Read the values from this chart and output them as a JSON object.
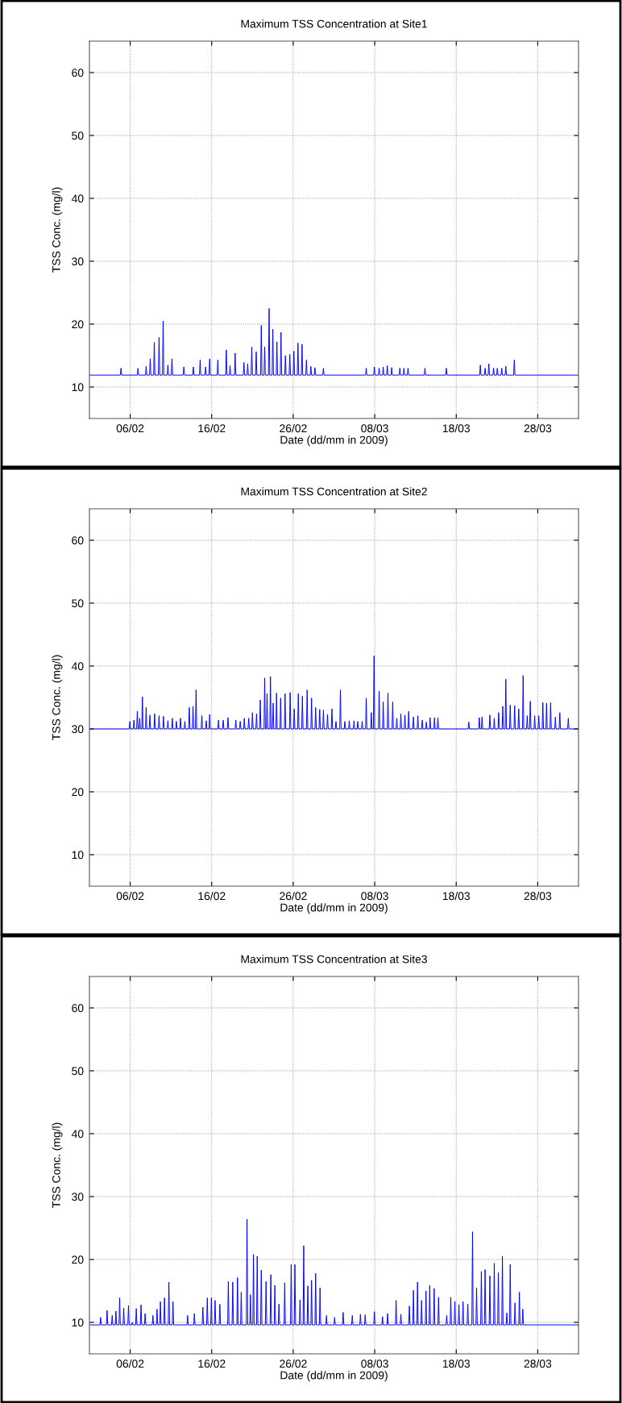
{
  "chart_data": [
    {
      "type": "line",
      "title": "Maximum TSS Concentration at Site1",
      "xlabel": "Date (dd/mm in 2009)",
      "ylabel": "TSS Conc. (mg/l)",
      "xlim": [
        "2009-02-01",
        "2009-04-02"
      ],
      "ylim": [
        5,
        65
      ],
      "xticks": [
        {
          "value": "2009-02-06",
          "label": "06/02"
        },
        {
          "value": "2009-02-16",
          "label": "16/02"
        },
        {
          "value": "2009-02-26",
          "label": "26/02"
        },
        {
          "value": "2009-03-08",
          "label": "08/03"
        },
        {
          "value": "2009-03-18",
          "label": "18/03"
        },
        {
          "value": "2009-03-28",
          "label": "28/03"
        }
      ],
      "yticks": [
        10,
        20,
        30,
        40,
        50,
        60
      ],
      "grid": true,
      "line_style": "solid",
      "x": [
        "2009-02-01",
        "2009-02-04T19:00",
        "2009-02-04T21:00",
        "2009-02-04T23:00",
        "2009-02-06T21:00",
        "2009-02-06T23:00",
        "2009-02-07T01:00",
        "2009-02-07T21:00",
        "2009-02-07T23:00",
        "2009-02-08T01:00",
        "2009-02-08T09:00",
        "2009-02-08T11:00",
        "2009-02-08T13:00",
        "2009-02-08T21:00",
        "2009-02-08T23:00",
        "2009-02-09T01:00",
        "2009-02-09T11:00",
        "2009-02-09T13:00",
        "2009-02-09T15:00",
        "2009-02-09T23:00",
        "2009-02-10T01:00",
        "2009-02-10T03:00",
        "2009-02-10T13:00",
        "2009-02-10T15:00",
        "2009-02-10T17:00",
        "2009-02-11T01:00",
        "2009-02-11T03:00",
        "2009-02-11T05:00",
        "2009-02-12T12:00",
        "2009-02-12T14:00",
        "2009-02-12T16:00",
        "2009-02-13T16:00",
        "2009-02-13T18:00",
        "2009-02-13T20:00",
        "2009-02-14T12:00",
        "2009-02-14T14:00",
        "2009-02-14T16:00",
        "2009-02-15T04:00",
        "2009-02-15T06:00",
        "2009-02-15T08:00",
        "2009-02-15T16:00",
        "2009-02-15T18:00",
        "2009-02-15T20:00",
        "2009-02-16T16:00",
        "2009-02-16T18:00",
        "2009-02-16T20:00",
        "2009-02-17T17:00",
        "2009-02-17T19:00",
        "2009-02-17T21:00",
        "2009-02-18T04:00",
        "2009-02-18T06:00",
        "2009-02-18T08:00",
        "2009-02-18T19:00",
        "2009-02-18T21:00",
        "2009-02-18T23:00",
        "2009-02-19T21:00",
        "2009-02-19T23:00",
        "2009-02-20T01:00",
        "2009-02-20T08:00",
        "2009-02-20T10:00",
        "2009-02-20T12:00",
        "2009-02-20T20:00",
        "2009-02-20T22:00",
        "2009-02-21T00:00",
        "2009-02-21T09:00",
        "2009-02-21T11:00",
        "2009-02-21T13:00",
        "2009-02-22T00:00",
        "2009-02-22T02:00",
        "2009-02-22T04:00",
        "2009-02-22T10:00",
        "2009-02-22T12:00",
        "2009-02-22T14:00",
        "2009-02-22T23:00",
        "2009-02-23T01:00",
        "2009-02-23T03:00",
        "2009-02-23T10:00",
        "2009-02-23T12:00",
        "2009-02-23T14:00",
        "2009-02-23T22:00",
        "2009-02-24T00:00",
        "2009-02-24T02:00",
        "2009-02-24T10:00",
        "2009-02-24T12:00",
        "2009-02-24T14:00",
        "2009-02-24T23:00",
        "2009-02-25T01:00",
        "2009-02-25T03:00",
        "2009-02-25T12:00",
        "2009-02-25T14:00",
        "2009-02-25T16:00",
        "2009-02-26T00:00",
        "2009-02-26T02:00",
        "2009-02-26T04:00",
        "2009-02-26T12:00",
        "2009-02-26T14:00",
        "2009-02-26T16:00",
        "2009-02-27T00:00",
        "2009-02-27T02:00",
        "2009-02-27T04:00",
        "2009-02-27T13:00",
        "2009-02-27T15:00",
        "2009-02-27T17:00",
        "2009-02-28T02:00",
        "2009-02-28T04:00",
        "2009-02-28T06:00",
        "2009-02-28T14:00",
        "2009-02-28T16:00",
        "2009-02-28T18:00",
        "2009-03-01T15:00",
        "2009-03-01T17:00",
        "2009-03-01T19:00",
        "2009-03-06T21:00",
        "2009-03-06T23:00",
        "2009-03-07T01:00",
        "2009-03-07T21:00",
        "2009-03-07T23:00",
        "2009-03-08T01:00",
        "2009-03-08T11:00",
        "2009-03-08T13:00",
        "2009-03-08T15:00",
        "2009-03-08T23:00",
        "2009-03-09T01:00",
        "2009-03-09T03:00",
        "2009-03-09T11:00",
        "2009-03-09T13:00",
        "2009-03-09T15:00",
        "2009-03-10T00:00",
        "2009-03-10T02:00",
        "2009-03-10T04:00",
        "2009-03-11T00:00",
        "2009-03-11T02:00",
        "2009-03-11T04:00",
        "2009-03-11T12:00",
        "2009-03-11T14:00",
        "2009-03-11T16:00",
        "2009-03-12T00:00",
        "2009-03-12T02:00",
        "2009-03-12T04:00",
        "2009-03-14T02:00",
        "2009-03-14T04:00",
        "2009-03-14T06:00",
        "2009-03-16T17:00",
        "2009-03-16T19:00",
        "2009-03-16T21:00",
        "2009-03-20T21:00",
        "2009-03-20T23:00",
        "2009-03-21T01:00",
        "2009-03-21T11:00",
        "2009-03-21T13:00",
        "2009-03-21T15:00",
        "2009-03-21T22:00",
        "2009-03-22T00:00",
        "2009-03-22T02:00",
        "2009-03-22T12:00",
        "2009-03-22T14:00",
        "2009-03-22T16:00",
        "2009-03-22T23:00",
        "2009-03-23T01:00",
        "2009-03-23T03:00",
        "2009-03-23T12:00",
        "2009-03-23T14:00",
        "2009-03-23T16:00",
        "2009-03-24T00:00",
        "2009-03-24T02:00",
        "2009-03-24T04:00",
        "2009-03-25T01:00",
        "2009-03-25T03:00",
        "2009-03-25T05:00",
        "2009-04-02"
      ],
      "series": [
        {
          "color": "#0000ff",
          "values": [
            11.9,
            11.9,
            13.0,
            11.9,
            11.9,
            13.0,
            11.9,
            11.9,
            13.3,
            11.9,
            11.9,
            14.5,
            11.9,
            11.9,
            17.1,
            11.9,
            11.9,
            17.9,
            11.9,
            11.9,
            20.5,
            11.9,
            11.9,
            13.5,
            11.9,
            11.9,
            14.5,
            11.9,
            11.9,
            13.2,
            11.9,
            11.9,
            13.2,
            11.9,
            11.9,
            14.3,
            11.9,
            11.9,
            13.2,
            11.9,
            11.9,
            14.5,
            11.9,
            11.9,
            14.3,
            11.9,
            11.9,
            15.9,
            11.9,
            11.9,
            13.4,
            11.9,
            11.9,
            15.4,
            11.9,
            11.9,
            13.9,
            11.9,
            11.9,
            13.7,
            11.9,
            11.9,
            16.4,
            11.9,
            11.9,
            15.6,
            11.9,
            11.9,
            19.8,
            11.9,
            11.9,
            16.4,
            11.9,
            11.9,
            22.5,
            11.9,
            11.9,
            19.2,
            11.9,
            11.9,
            17.2,
            11.9,
            11.9,
            18.7,
            11.9,
            11.9,
            15.0,
            11.9,
            11.9,
            15.2,
            11.9,
            11.9,
            15.7,
            11.9,
            11.9,
            17.0,
            11.9,
            11.9,
            16.8,
            11.9,
            11.9,
            14.3,
            11.9,
            11.9,
            13.3,
            11.9,
            11.9,
            13.1,
            11.9,
            11.9,
            13.0,
            11.9,
            11.9,
            13.0,
            11.9,
            11.9,
            13.2,
            11.9,
            11.9,
            13.0,
            11.9,
            11.9,
            13.2,
            11.9,
            11.9,
            13.4,
            11.9,
            11.9,
            13.1,
            11.9,
            11.9,
            13.0,
            11.9,
            11.9,
            13.0,
            11.9,
            11.9,
            13.0,
            11.9,
            11.9,
            13.0,
            11.9,
            11.9,
            13.0,
            11.9,
            11.9,
            13.5,
            11.9,
            11.9,
            13.0,
            11.9,
            11.9,
            13.7,
            11.9,
            11.9,
            13.0,
            11.9,
            11.9,
            13.0,
            11.9,
            11.9,
            13.0,
            11.9,
            11.9,
            13.3,
            11.9,
            11.9,
            14.3,
            11.9,
            11.9
          ]
        }
      ]
    },
    {
      "type": "line",
      "title": "Maximum TSS Concentration at Site2",
      "xlabel": "Date (dd/mm in 2009)",
      "ylabel": "TSS Conc. (mg/l)",
      "xlim": [
        "2009-02-01",
        "2009-04-02"
      ],
      "ylim": [
        5,
        65
      ],
      "xticks": [
        {
          "value": "2009-02-06",
          "label": "06/02"
        },
        {
          "value": "2009-02-16",
          "label": "16/02"
        },
        {
          "value": "2009-02-26",
          "label": "26/02"
        },
        {
          "value": "2009-03-08",
          "label": "08/03"
        },
        {
          "value": "2009-03-18",
          "label": "18/03"
        },
        {
          "value": "2009-03-28",
          "label": "28/03"
        }
      ],
      "yticks": [
        10,
        20,
        30,
        40,
        50,
        60
      ],
      "grid": true,
      "line_style": "solid",
      "x": [
        "2009-02-01",
        "2009-02-05T21:00",
        "2009-02-05T23:00",
        "2009-02-06T01:00",
        "2009-02-06T09:00",
        "2009-02-06T11:00",
        "2009-02-06T13:00",
        "2009-02-06T19:00",
        "2009-02-06T21:00",
        "2009-02-06T23:00",
        "2009-02-07T02:00",
        "2009-02-07T04:00",
        "2009-02-07T06:00",
        "2009-02-07T10:00",
        "2009-02-07T12:00",
        "2009-02-07T14:00",
        "2009-02-07T21:00",
        "2009-02-07T23:00",
        "2009-02-08T01:00",
        "2009-02-08T08:00",
        "2009-02-08T10:00",
        "2009-02-08T12:00",
        "2009-02-08T22:00",
        "2009-02-09T00:00",
        "2009-02-09T02:00",
        "2009-02-09T11:00",
        "2009-02-09T13:00",
        "2009-02-09T15:00",
        "2009-02-10T00:00",
        "2009-02-10T02:00",
        "2009-02-10T04:00",
        "2009-02-10T13:00",
        "2009-02-10T15:00",
        "2009-02-10T17:00",
        "2009-02-11T02:00",
        "2009-02-11T04:00",
        "2009-02-11T06:00",
        "2009-02-11T14:00",
        "2009-02-11T16:00",
        "2009-02-11T18:00",
        "2009-02-12T02:00",
        "2009-02-12T04:00",
        "2009-02-12T06:00",
        "2009-02-12T15:00",
        "2009-02-12T17:00",
        "2009-02-12T19:00",
        "2009-02-13T04:00",
        "2009-02-13T06:00",
        "2009-02-13T08:00",
        "2009-02-13T15:00",
        "2009-02-13T17:00",
        "2009-02-13T19:00",
        "2009-02-14T00:00",
        "2009-02-14T02:00",
        "2009-02-14T04:00",
        "2009-02-14T17:00",
        "2009-02-14T19:00",
        "2009-02-14T21:00",
        "2009-02-15T06:00",
        "2009-02-15T08:00",
        "2009-02-15T10:00",
        "2009-02-15T16:00",
        "2009-02-15T18:00",
        "2009-02-15T20:00",
        "2009-02-16T18:00",
        "2009-02-16T20:00",
        "2009-02-16T22:00",
        "2009-02-17T08:00",
        "2009-02-17T10:00",
        "2009-02-17T12:00",
        "2009-02-17T22:00",
        "2009-02-18T00:00",
        "2009-02-18T02:00",
        "2009-02-18T21:00",
        "2009-02-18T23:00",
        "2009-02-19T01:00",
        "2009-02-19T10:00",
        "2009-02-19T12:00",
        "2009-02-19T14:00",
        "2009-02-19T22:00",
        "2009-02-20T00:00",
        "2009-02-20T02:00",
        "2009-02-20T11:00",
        "2009-02-20T13:00",
        "2009-02-20T15:00",
        "2009-02-20T22:00",
        "2009-02-21T00:00",
        "2009-02-21T02:00",
        "2009-02-21T10:00",
        "2009-02-21T12:00",
        "2009-02-21T14:00",
        "2009-02-21T21:00",
        "2009-02-21T23:00",
        "2009-02-22T01:00",
        "2009-02-22T10:00",
        "2009-02-22T12:00",
        "2009-02-22T14:00",
        "2009-02-22T17:00",
        "2009-02-22T19:00",
        "2009-02-22T21:00",
        "2009-02-23T03:00",
        "2009-02-23T05:00",
        "2009-02-23T07:00",
        "2009-02-23T11:00",
        "2009-02-23T13:00",
        "2009-02-23T15:00",
        "2009-02-23T21:00",
        "2009-02-23T23:00",
        "2009-02-24T01:00",
        "2009-02-24T09:00",
        "2009-02-24T11:00",
        "2009-02-24T13:00",
        "2009-02-24T22:00",
        "2009-02-25T00:00",
        "2009-02-25T02:00",
        "2009-02-25T13:00",
        "2009-02-25T15:00",
        "2009-02-25T17:00",
        "2009-02-26T01:00",
        "2009-02-26T03:00",
        "2009-02-26T05:00",
        "2009-02-26T13:00",
        "2009-02-26T15:00",
        "2009-02-26T17:00",
        "2009-02-27T01:00",
        "2009-02-27T03:00",
        "2009-02-27T05:00",
        "2009-02-27T15:00",
        "2009-02-27T17:00",
        "2009-02-27T19:00",
        "2009-02-28T04:00",
        "2009-02-28T06:00",
        "2009-02-28T08:00",
        "2009-02-28T16:00",
        "2009-02-28T18:00",
        "2009-02-28T20:00",
        "2009-03-01T04:00",
        "2009-03-01T06:00",
        "2009-03-01T08:00",
        "2009-03-01T15:00",
        "2009-03-01T17:00",
        "2009-03-01T19:00",
        "2009-03-02T03:00",
        "2009-03-02T05:00",
        "2009-03-02T07:00",
        "2009-03-02T16:00",
        "2009-03-02T18:00",
        "2009-03-02T20:00",
        "2009-03-03T04:00",
        "2009-03-03T06:00",
        "2009-03-03T08:00",
        "2009-03-03T17:00",
        "2009-03-03T19:00",
        "2009-03-03T21:00",
        "2009-03-04T06:00",
        "2009-03-04T08:00",
        "2009-03-04T10:00",
        "2009-03-04T19:00",
        "2009-03-04T21:00",
        "2009-03-04T23:00",
        "2009-03-05T09:00",
        "2009-03-05T11:00",
        "2009-03-05T13:00",
        "2009-03-05T20:00",
        "2009-03-05T22:00",
        "2009-03-06T00:00",
        "2009-03-06T09:00",
        "2009-03-06T11:00",
        "2009-03-06T13:00",
        "2009-03-06T21:00",
        "2009-03-06T23:00",
        "2009-03-07T01:00",
        "2009-03-07T12:00",
        "2009-03-07T14:00",
        "2009-03-07T16:00",
        "2009-03-07T20:00",
        "2009-03-07T22:00",
        "2009-03-08T00:00",
        "2009-03-08T11:00",
        "2009-03-08T13:00",
        "2009-03-08T15:00",
        "2009-03-08T23:00",
        "2009-03-09T01:00",
        "2009-03-09T03:00",
        "2009-03-09T13:00",
        "2009-03-09T15:00",
        "2009-03-09T17:00",
        "2009-03-10T03:00",
        "2009-03-10T05:00",
        "2009-03-10T07:00",
        "2009-03-10T15:00",
        "2009-03-10T17:00",
        "2009-03-10T19:00",
        "2009-03-11T03:00",
        "2009-03-11T05:00",
        "2009-03-11T07:00",
        "2009-03-11T15:00",
        "2009-03-11T17:00",
        "2009-03-11T19:00",
        "2009-03-12T02:00",
        "2009-03-12T04:00",
        "2009-03-12T06:00",
        "2009-03-12T16:00",
        "2009-03-12T18:00",
        "2009-03-12T20:00",
        "2009-03-13T05:00",
        "2009-03-13T07:00",
        "2009-03-13T09:00",
        "2009-03-13T18:00",
        "2009-03-13T20:00",
        "2009-03-13T22:00",
        "2009-03-14T06:00",
        "2009-03-14T08:00",
        "2009-03-14T10:00",
        "2009-03-14T17:00",
        "2009-03-14T19:00",
        "2009-03-14T21:00",
        "2009-03-15T06:00",
        "2009-03-15T08:00",
        "2009-03-15T10:00",
        "2009-03-15T16:00",
        "2009-03-15T18:00",
        "2009-03-15T20:00",
        "2009-03-19T11:00",
        "2009-03-19T13:00",
        "2009-03-19T15:00",
        "2009-03-20T18:00",
        "2009-03-20T20:00",
        "2009-03-20T22:00",
        "2009-03-21T02:00",
        "2009-03-21T04:00",
        "2009-03-21T06:00",
        "2009-03-22T01:00",
        "2009-03-22T03:00",
        "2009-03-22T05:00",
        "2009-03-22T14:00",
        "2009-03-22T16:00",
        "2009-03-22T18:00",
        "2009-03-23T03:00",
        "2009-03-23T05:00",
        "2009-03-23T07:00",
        "2009-03-23T15:00",
        "2009-03-23T17:00",
        "2009-03-23T19:00",
        "2009-03-24T00:00",
        "2009-03-24T02:00",
        "2009-03-24T04:00",
        "2009-03-24T13:00",
        "2009-03-24T15:00",
        "2009-03-24T17:00",
        "2009-03-25T02:00",
        "2009-03-25T04:00",
        "2009-03-25T06:00",
        "2009-03-25T14:00",
        "2009-03-25T16:00",
        "2009-03-25T18:00",
        "2009-03-26T03:00",
        "2009-03-26T05:00",
        "2009-03-26T07:00",
        "2009-03-26T15:00",
        "2009-03-26T17:00",
        "2009-03-26T19:00",
        "2009-03-27T00:00",
        "2009-03-27T02:00",
        "2009-03-27T04:00",
        "2009-03-27T13:00",
        "2009-03-27T15:00",
        "2009-03-27T17:00",
        "2009-03-28T01:00",
        "2009-03-28T03:00",
        "2009-03-28T05:00",
        "2009-03-28T13:00",
        "2009-03-28T15:00",
        "2009-03-28T17:00",
        "2009-03-29T00:00",
        "2009-03-29T02:00",
        "2009-03-29T04:00",
        "2009-03-29T12:00",
        "2009-03-29T14:00",
        "2009-03-29T16:00",
        "2009-03-30T02:00",
        "2009-03-30T04:00",
        "2009-03-30T06:00",
        "2009-03-30T15:00",
        "2009-03-30T17:00",
        "2009-03-30T19:00",
        "2009-03-31T16:00",
        "2009-03-31T18:00",
        "2009-03-31T20:00",
        "2009-04-02"
      ],
      "series": [
        {
          "color": "#0000ff",
          "values": [
            30,
            30,
            31.2,
            30,
            30,
            31.4,
            30,
            30,
            32.8,
            30,
            30,
            31.7,
            30,
            30,
            35.1,
            30,
            30,
            33.4,
            30,
            30,
            32.2,
            30,
            30,
            32.4,
            30,
            30,
            32.1,
            30,
            30,
            32.0,
            30,
            30,
            31.3,
            30,
            30,
            31.7,
            30,
            30,
            31.2,
            30,
            30,
            31.7,
            30,
            30,
            31.2,
            30,
            30,
            33.4,
            30,
            30,
            33.6,
            30,
            30,
            36.2,
            30,
            30,
            32.1,
            30,
            30,
            31.3,
            30,
            30,
            32.3,
            30,
            30,
            31.4,
            30,
            30,
            31.4,
            30,
            30,
            31.8,
            30,
            30,
            31.4,
            30,
            30,
            31.2,
            30,
            30,
            31.7,
            30,
            30,
            31.7,
            30,
            30,
            32.6,
            30,
            30,
            32.4,
            30,
            30,
            34.6,
            30,
            30,
            38.1,
            30,
            30,
            35.6,
            30,
            30,
            38.3,
            30,
            30,
            34.1,
            30,
            30,
            35.7,
            30,
            30,
            34.9,
            30,
            30,
            35.6,
            30,
            30,
            35.8,
            30,
            30,
            33.2,
            30,
            30,
            35.6,
            30,
            30,
            35.2,
            30,
            30,
            36.2,
            30,
            30,
            34.9,
            30,
            30,
            33.4,
            30,
            30,
            33.1,
            30,
            30,
            33.0,
            30,
            30,
            32.3,
            30,
            30,
            33.2,
            30,
            30,
            31.2,
            30,
            30,
            36.2,
            30,
            30,
            31.2,
            30,
            30,
            31.3,
            30,
            30,
            31.3,
            30,
            30,
            31.2,
            30,
            30,
            31.2,
            30,
            30,
            34.9,
            30,
            30,
            32.6,
            30,
            30,
            41.6,
            30,
            30,
            36.0,
            30,
            30,
            34.3,
            30,
            30,
            35.7,
            30,
            30,
            34.3,
            30,
            30,
            31.7,
            30,
            30,
            32.4,
            30,
            30,
            32.2,
            30,
            30,
            32.8,
            30,
            30,
            31.9,
            30,
            30,
            32.1,
            30,
            30,
            31.4,
            30,
            30,
            31.1,
            30,
            30,
            31.8,
            30,
            30,
            31.8,
            30,
            30,
            31.8,
            30,
            30,
            31.1,
            30,
            30,
            31.8,
            30,
            30,
            31.9,
            30,
            30,
            32.2,
            30,
            30,
            31.7,
            30,
            30,
            32.6,
            30,
            30,
            33.6,
            30,
            30,
            37.9,
            30,
            30,
            33.8,
            30,
            30,
            33.7,
            30,
            30,
            33.2,
            30,
            30,
            38.5,
            30,
            30,
            32.1,
            30,
            30,
            34.4,
            30,
            30,
            32.1,
            30,
            30,
            32.1,
            30,
            30,
            34.2,
            30,
            30,
            34.1,
            30,
            30,
            34.2,
            30,
            30,
            31.9,
            30,
            30,
            32.6,
            30,
            30,
            31.7,
            30,
            30
          ]
        }
      ]
    },
    {
      "type": "line",
      "title": "Maximum TSS Concentration at Site3",
      "xlabel": "Date (dd/mm in 2009)",
      "ylabel": "TSS Conc. (mg/l)",
      "xlim": [
        "2009-02-01",
        "2009-04-02"
      ],
      "ylim": [
        5,
        65
      ],
      "xticks": [
        {
          "value": "2009-02-06",
          "label": "06/02"
        },
        {
          "value": "2009-02-16",
          "label": "16/02"
        },
        {
          "value": "2009-02-26",
          "label": "26/02"
        },
        {
          "value": "2009-03-08",
          "label": "08/03"
        },
        {
          "value": "2009-03-18",
          "label": "18/03"
        },
        {
          "value": "2009-03-28",
          "label": "28/03"
        }
      ],
      "yticks": [
        10,
        20,
        30,
        40,
        50,
        60
      ],
      "grid": true,
      "line_style": "solid",
      "x": [
        "2009-02-01",
        "2009-02-02T07:00",
        "2009-02-02T09:00",
        "2009-02-02T11:00",
        "2009-02-03T02:00",
        "2009-02-03T04:00",
        "2009-02-03T06:00",
        "2009-02-03T17:00",
        "2009-02-03T19:00",
        "2009-02-03T21:00",
        "2009-02-04T04:00",
        "2009-02-04T06:00",
        "2009-02-04T08:00",
        "2009-02-04T15:00",
        "2009-02-04T17:00",
        "2009-02-04T19:00",
        "2009-02-05T03:00",
        "2009-02-05T05:00",
        "2009-02-05T07:00",
        "2009-02-05T17:00",
        "2009-02-05T19:00",
        "2009-02-05T21:00",
        "2009-02-06T04:00",
        "2009-02-06T06:00",
        "2009-02-06T08:00",
        "2009-02-06T16:00",
        "2009-02-06T18:00",
        "2009-02-06T20:00",
        "2009-02-07T06:00",
        "2009-02-07T08:00",
        "2009-02-07T10:00",
        "2009-02-07T18:00",
        "2009-02-07T20:00",
        "2009-02-07T22:00",
        "2009-02-08T17:00",
        "2009-02-08T19:00",
        "2009-02-08T21:00",
        "2009-02-09T05:00",
        "2009-02-09T07:00",
        "2009-02-09T09:00",
        "2009-02-09T15:00",
        "2009-02-09T17:00",
        "2009-02-09T19:00",
        "2009-02-10T03:00",
        "2009-02-10T05:00",
        "2009-02-10T07:00",
        "2009-02-10T16:00",
        "2009-02-10T18:00",
        "2009-02-10T20:00",
        "2009-02-11T04:00",
        "2009-02-11T06:00",
        "2009-02-11T08:00",
        "2009-02-12T23:00",
        "2009-02-13T01:00",
        "2009-02-13T03:00",
        "2009-02-13T19:00",
        "2009-02-13T21:00",
        "2009-02-13T23:00",
        "2009-02-14T20:00",
        "2009-02-14T22:00",
        "2009-02-15T00:00",
        "2009-02-15T09:00",
        "2009-02-15T11:00",
        "2009-02-15T13:00",
        "2009-02-15T21:00",
        "2009-02-15T23:00",
        "2009-02-16T01:00",
        "2009-02-16T08:00",
        "2009-02-16T10:00",
        "2009-02-16T12:00",
        "2009-02-16T22:00",
        "2009-02-17T00:00",
        "2009-02-17T02:00",
        "2009-02-17T23:00",
        "2009-02-18T01:00",
        "2009-02-18T03:00",
        "2009-02-18T12:00",
        "2009-02-18T14:00",
        "2009-02-18T16:00",
        "2009-02-19T02:00",
        "2009-02-19T04:00",
        "2009-02-19T06:00",
        "2009-02-19T13:00",
        "2009-02-19T15:00",
        "2009-02-19T17:00",
        "2009-02-20T06:00",
        "2009-02-20T08:00",
        "2009-02-20T10:00",
        "2009-02-20T16:00",
        "2009-02-20T18:00",
        "2009-02-20T20:00",
        "2009-02-21T01:00",
        "2009-02-21T03:00",
        "2009-02-21T05:00",
        "2009-02-21T12:00",
        "2009-02-21T14:00",
        "2009-02-21T16:00",
        "2009-02-22T00:00",
        "2009-02-22T02:00",
        "2009-02-22T04:00",
        "2009-02-22T14:00",
        "2009-02-22T16:00",
        "2009-02-22T18:00",
        "2009-02-23T04:00",
        "2009-02-23T06:00",
        "2009-02-23T08:00",
        "2009-02-23T16:00",
        "2009-02-23T18:00",
        "2009-02-23T20:00",
        "2009-02-24T04:00",
        "2009-02-24T06:00",
        "2009-02-24T08:00",
        "2009-02-24T21:00",
        "2009-02-24T23:00",
        "2009-02-25T01:00",
        "2009-02-25T16:00",
        "2009-02-25T18:00",
        "2009-02-25T20:00",
        "2009-02-26T03:00",
        "2009-02-26T05:00",
        "2009-02-26T07:00",
        "2009-02-26T18:00",
        "2009-02-26T20:00",
        "2009-02-26T22:00",
        "2009-02-27T05:00",
        "2009-02-27T07:00",
        "2009-02-27T09:00",
        "2009-02-27T17:00",
        "2009-02-27T19:00",
        "2009-02-27T21:00",
        "2009-02-28T04:00",
        "2009-02-28T06:00",
        "2009-02-28T08:00",
        "2009-02-28T16:00",
        "2009-02-28T18:00",
        "2009-02-28T20:00",
        "2009-03-01T05:00",
        "2009-03-01T07:00",
        "2009-03-01T09:00",
        "2009-03-02T00:00",
        "2009-03-02T02:00",
        "2009-03-02T04:00",
        "2009-03-03T00:00",
        "2009-03-03T02:00",
        "2009-03-03T04:00",
        "2009-03-04T01:00",
        "2009-03-04T03:00",
        "2009-03-04T05:00",
        "2009-03-05T04:00",
        "2009-03-05T06:00",
        "2009-03-05T08:00",
        "2009-03-06T04:00",
        "2009-03-06T06:00",
        "2009-03-06T08:00",
        "2009-03-06T18:00",
        "2009-03-06T20:00",
        "2009-03-06T22:00",
        "2009-03-07T21:00",
        "2009-03-07T23:00",
        "2009-03-08T01:00",
        "2009-03-08T21:00",
        "2009-03-08T23:00",
        "2009-03-09T01:00",
        "2009-03-09T12:00",
        "2009-03-09T14:00",
        "2009-03-09T16:00",
        "2009-03-10T13:00",
        "2009-03-10T15:00",
        "2009-03-10T17:00",
        "2009-03-11T03:00",
        "2009-03-11T05:00",
        "2009-03-11T07:00",
        "2009-03-12T04:00",
        "2009-03-12T06:00",
        "2009-03-12T08:00",
        "2009-03-12T16:00",
        "2009-03-12T18:00",
        "2009-03-12T20:00",
        "2009-03-13T04:00",
        "2009-03-13T06:00",
        "2009-03-13T08:00",
        "2009-03-13T16:00",
        "2009-03-13T18:00",
        "2009-03-13T20:00",
        "2009-03-14T05:00",
        "2009-03-14T07:00",
        "2009-03-14T09:00",
        "2009-03-14T16:00",
        "2009-03-14T18:00",
        "2009-03-14T20:00",
        "2009-03-15T05:00",
        "2009-03-15T07:00",
        "2009-03-15T09:00",
        "2009-03-15T18:00",
        "2009-03-15T20:00",
        "2009-03-15T22:00",
        "2009-03-16T18:00",
        "2009-03-16T20:00",
        "2009-03-16T22:00",
        "2009-03-17T06:00",
        "2009-03-17T08:00",
        "2009-03-17T10:00",
        "2009-03-17T18:00",
        "2009-03-17T20:00",
        "2009-03-17T22:00",
        "2009-03-18T06:00",
        "2009-03-18T08:00",
        "2009-03-18T10:00",
        "2009-03-18T18:00",
        "2009-03-18T20:00",
        "2009-03-18T22:00",
        "2009-03-19T08:00",
        "2009-03-19T10:00",
        "2009-03-19T12:00",
        "2009-03-19T22:00",
        "2009-03-20T00:00",
        "2009-03-20T02:00",
        "2009-03-20T10:00",
        "2009-03-20T12:00",
        "2009-03-20T14:00",
        "2009-03-21T00:00",
        "2009-03-21T02:00",
        "2009-03-21T04:00",
        "2009-03-21T11:00",
        "2009-03-21T13:00",
        "2009-03-21T15:00",
        "2009-03-22T01:00",
        "2009-03-22T03:00",
        "2009-03-22T05:00",
        "2009-03-22T14:00",
        "2009-03-22T16:00",
        "2009-03-22T18:00",
        "2009-03-23T02:00",
        "2009-03-23T04:00",
        "2009-03-23T06:00",
        "2009-03-23T14:00",
        "2009-03-23T16:00",
        "2009-03-23T18:00",
        "2009-03-24T03:00",
        "2009-03-24T05:00",
        "2009-03-24T07:00",
        "2009-03-24T13:00",
        "2009-03-24T15:00",
        "2009-03-24T17:00",
        "2009-03-25T03:00",
        "2009-03-25T05:00",
        "2009-03-25T07:00",
        "2009-03-25T16:00",
        "2009-03-25T18:00",
        "2009-03-25T20:00",
        "2009-03-26T02:00",
        "2009-03-26T04:00",
        "2009-03-26T06:00",
        "2009-04-02"
      ],
      "series": [
        {
          "color": "#0000ff",
          "values": [
            9.6,
            9.6,
            10.8,
            9.6,
            9.6,
            11.9,
            9.6,
            9.6,
            11.1,
            9.6,
            9.6,
            11.8,
            9.6,
            9.6,
            13.9,
            9.6,
            9.6,
            12.3,
            9.6,
            9.6,
            12.7,
            9.6,
            9.6,
            10.0,
            9.6,
            9.6,
            12.2,
            9.6,
            9.6,
            12.8,
            9.6,
            9.6,
            11.4,
            9.6,
            9.6,
            11.1,
            9.6,
            9.6,
            12.1,
            9.6,
            9.6,
            13.3,
            9.6,
            9.6,
            13.9,
            9.6,
            9.6,
            16.4,
            9.6,
            9.6,
            13.3,
            9.6,
            9.6,
            11.1,
            9.6,
            9.6,
            11.4,
            9.6,
            9.6,
            12.4,
            9.6,
            9.6,
            13.9,
            9.6,
            9.6,
            13.9,
            9.6,
            9.6,
            13.5,
            9.6,
            9.6,
            12.9,
            9.6,
            9.6,
            16.5,
            9.6,
            9.6,
            16.4,
            9.6,
            9.6,
            17.1,
            9.6,
            9.6,
            14.8,
            9.6,
            9.6,
            26.4,
            9.6,
            9.6,
            14.4,
            9.6,
            9.6,
            20.8,
            9.6,
            9.6,
            20.5,
            9.6,
            9.6,
            18.3,
            9.6,
            9.6,
            16.5,
            9.6,
            9.6,
            17.6,
            9.6,
            9.6,
            15.9,
            9.6,
            9.6,
            12.9,
            9.6,
            9.6,
            16.3,
            9.6,
            9.6,
            19.2,
            9.6,
            9.6,
            19.2,
            9.6,
            9.6,
            13.6,
            9.6,
            9.6,
            22.2,
            9.6,
            9.6,
            15.8,
            9.6,
            9.6,
            16.7,
            9.6,
            9.6,
            17.8,
            9.6,
            9.6,
            15.5,
            9.6,
            9.6,
            11.1,
            9.6,
            9.6,
            10.8,
            9.6,
            9.6,
            11.6,
            9.6,
            9.6,
            11.1,
            9.6,
            9.6,
            11.3,
            9.6,
            9.6,
            11.2,
            9.6,
            9.6,
            11.7,
            9.6,
            9.6,
            10.9,
            9.6,
            9.6,
            11.4,
            9.6,
            9.6,
            13.5,
            9.6,
            9.6,
            11.3,
            9.6,
            9.6,
            12.6,
            9.6,
            9.6,
            15.1,
            9.6,
            9.6,
            16.4,
            9.6,
            9.6,
            13.5,
            9.6,
            9.6,
            15.0,
            9.6,
            9.6,
            15.9,
            9.6,
            9.6,
            15.4,
            9.6,
            9.6,
            14.0,
            9.6,
            9.6,
            11.1,
            9.6,
            9.6,
            14.0,
            9.6,
            9.6,
            13.3,
            9.6,
            9.6,
            12.8,
            9.6,
            9.6,
            13.3,
            9.6,
            9.6,
            12.9,
            9.6,
            9.6,
            24.4,
            9.6,
            9.6,
            15.5,
            9.6,
            9.6,
            18.1,
            9.6,
            9.6,
            18.4,
            9.6,
            9.6,
            17.4,
            9.6,
            9.6,
            19.4,
            9.6,
            9.6,
            17.9,
            9.6,
            9.6,
            20.5,
            9.6,
            9.6,
            11.5,
            9.6,
            9.6,
            19.2,
            9.6,
            9.6,
            13.1,
            9.6,
            9.6,
            14.8,
            9.6,
            9.6,
            12.1,
            9.6,
            9.6
          ]
        }
      ]
    }
  ]
}
